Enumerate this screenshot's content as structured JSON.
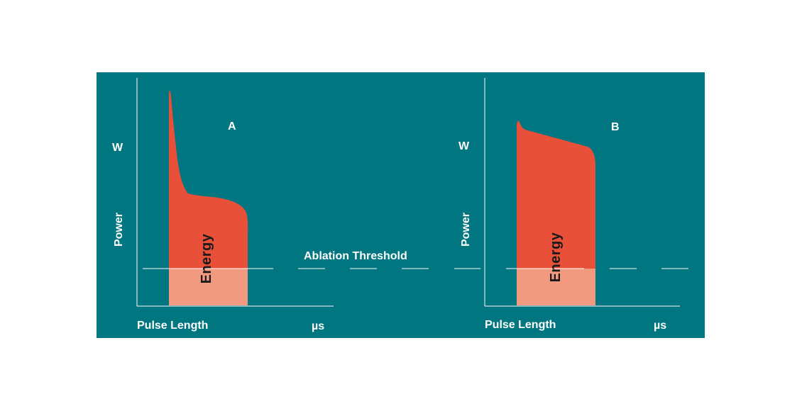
{
  "colors": {
    "background": "#007680",
    "pulse_above": "#E8503A",
    "pulse_below": "#F29A80",
    "axis": "#ffffff",
    "energy_text": "#1a1a1a"
  },
  "threshold_label": "Ablation Threshold",
  "diagrams": [
    {
      "id": "A",
      "title": "A",
      "power_unit": "W",
      "y_label": "Power",
      "x_label": "Pulse Length",
      "x_unit": "µs",
      "area_label": "Energy"
    },
    {
      "id": "B",
      "title": "B",
      "power_unit": "W",
      "y_label": "Power",
      "x_label": "Pulse Length",
      "x_unit": "µs",
      "area_label": "Energy"
    }
  ]
}
